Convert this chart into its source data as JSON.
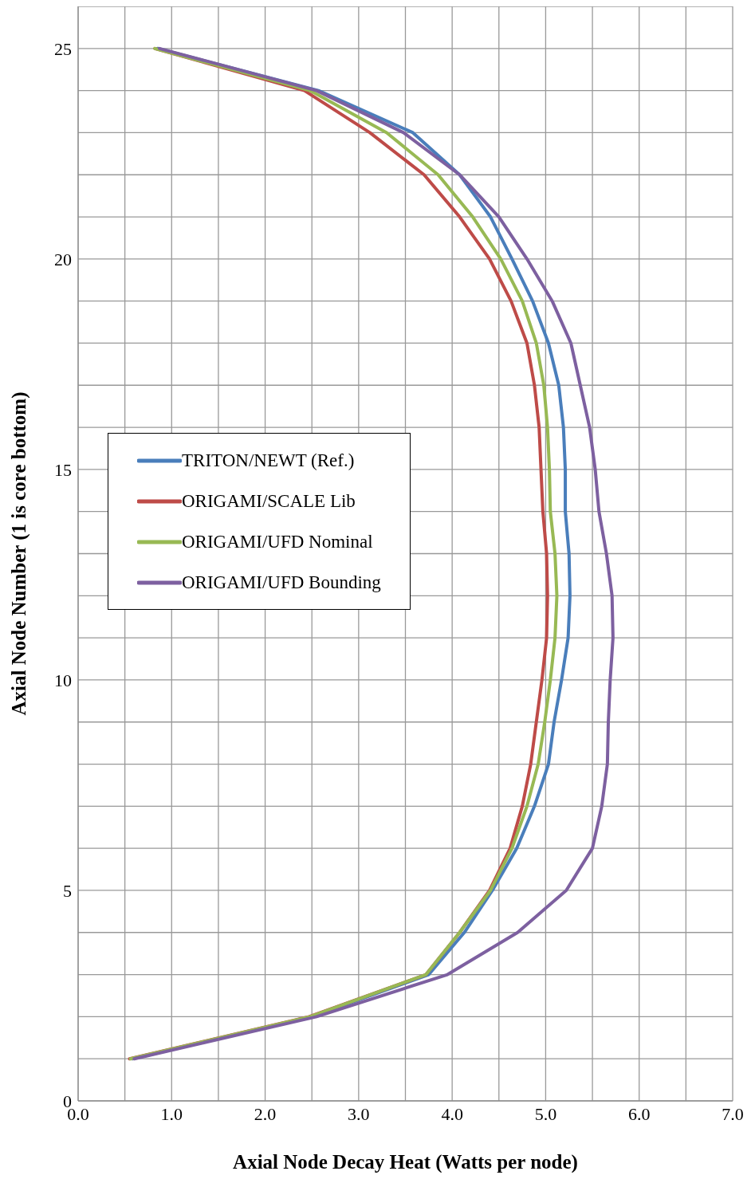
{
  "chart_data": {
    "type": "line",
    "xlabel": "Axial Node Decay Heat (Watts per node)",
    "ylabel": "Axial Node Number (1 is core bottom)",
    "xlim": [
      0,
      7
    ],
    "ylim": [
      0,
      26
    ],
    "xticks": [
      {
        "value": 0,
        "label": "0.0"
      },
      {
        "value": 0.5,
        "label": null
      },
      {
        "value": 1,
        "label": "1.0"
      },
      {
        "value": 1.5,
        "label": null
      },
      {
        "value": 2,
        "label": "2.0"
      },
      {
        "value": 2.5,
        "label": null
      },
      {
        "value": 3,
        "label": "3.0"
      },
      {
        "value": 3.5,
        "label": null
      },
      {
        "value": 4,
        "label": "4.0"
      },
      {
        "value": 4.5,
        "label": null
      },
      {
        "value": 5,
        "label": "5.0"
      },
      {
        "value": 5.5,
        "label": null
      },
      {
        "value": 6,
        "label": "6.0"
      },
      {
        "value": 6.5,
        "label": null
      },
      {
        "value": 7,
        "label": "7.0"
      }
    ],
    "yticks": [
      0,
      {
        "value": 1,
        "label": null
      },
      {
        "value": 2,
        "label": null
      },
      {
        "value": 3,
        "label": null
      },
      {
        "value": 4,
        "label": null
      },
      5,
      {
        "value": 6,
        "label": null
      },
      {
        "value": 7,
        "label": null
      },
      {
        "value": 8,
        "label": null
      },
      {
        "value": 9,
        "label": null
      },
      10,
      {
        "value": 11,
        "label": null
      },
      {
        "value": 12,
        "label": null
      },
      {
        "value": 13,
        "label": null
      },
      {
        "value": 14,
        "label": null
      },
      15,
      {
        "value": 16,
        "label": null
      },
      {
        "value": 17,
        "label": null
      },
      {
        "value": 18,
        "label": null
      },
      {
        "value": 19,
        "label": null
      },
      20,
      {
        "value": 21,
        "label": null
      },
      {
        "value": 22,
        "label": null
      },
      {
        "value": 23,
        "label": null
      },
      {
        "value": 24,
        "label": null
      },
      25,
      {
        "value": 26,
        "label": null
      }
    ],
    "grid": true,
    "legend": "left",
    "marker": "none",
    "line_style": "solid",
    "series": [
      {
        "name": "TRITON/NEWT (Ref.)",
        "color": "#4a7ebb",
        "x": [
          0.58,
          2.5,
          3.75,
          4.13,
          4.43,
          4.69,
          4.88,
          5.03,
          5.09,
          5.17,
          5.24,
          5.26,
          5.25,
          5.21,
          5.21,
          5.19,
          5.14,
          5.03,
          4.86,
          4.64,
          4.41,
          4.08,
          3.58,
          2.57,
          0.85
        ],
        "values": [
          1,
          2,
          3,
          4,
          5,
          6,
          7,
          8,
          9,
          10,
          11,
          12,
          13,
          14,
          15,
          16,
          17,
          18,
          19,
          20,
          21,
          22,
          23,
          24,
          25
        ]
      },
      {
        "name": "ORIGAMI/SCALE Lib",
        "color": "#be4b48",
        "x": [
          0.55,
          2.47,
          3.72,
          4.08,
          4.4,
          4.62,
          4.75,
          4.84,
          4.9,
          4.96,
          5.01,
          5.02,
          5.01,
          4.97,
          4.95,
          4.93,
          4.88,
          4.8,
          4.63,
          4.4,
          4.08,
          3.7,
          3.12,
          2.42,
          0.82
        ],
        "values": [
          1,
          2,
          3,
          4,
          5,
          6,
          7,
          8,
          9,
          10,
          11,
          12,
          13,
          14,
          15,
          16,
          17,
          18,
          19,
          20,
          21,
          22,
          23,
          24,
          25
        ]
      },
      {
        "name": "ORIGAMI/UFD Nominal",
        "color": "#98b954",
        "x": [
          0.56,
          2.48,
          3.72,
          4.08,
          4.41,
          4.64,
          4.8,
          4.92,
          4.99,
          5.05,
          5.1,
          5.12,
          5.1,
          5.05,
          5.04,
          5.02,
          4.98,
          4.9,
          4.75,
          4.52,
          4.22,
          3.85,
          3.3,
          2.48,
          0.82
        ],
        "values": [
          1,
          2,
          3,
          4,
          5,
          6,
          7,
          8,
          9,
          10,
          11,
          12,
          13,
          14,
          15,
          16,
          17,
          18,
          19,
          20,
          21,
          22,
          23,
          24,
          25
        ]
      },
      {
        "name": "ORIGAMI/UFD Bounding",
        "color": "#7d60a0",
        "x": [
          0.6,
          2.55,
          3.95,
          4.7,
          5.22,
          5.5,
          5.6,
          5.66,
          5.67,
          5.69,
          5.72,
          5.71,
          5.65,
          5.57,
          5.53,
          5.47,
          5.37,
          5.27,
          5.07,
          4.8,
          4.5,
          4.08,
          3.48,
          2.55,
          0.87
        ],
        "values": [
          1,
          2,
          3,
          4,
          5,
          6,
          7,
          8,
          9,
          10,
          11,
          12,
          13,
          14,
          15,
          16,
          17,
          18,
          19,
          20,
          21,
          22,
          23,
          24,
          25
        ]
      }
    ]
  }
}
